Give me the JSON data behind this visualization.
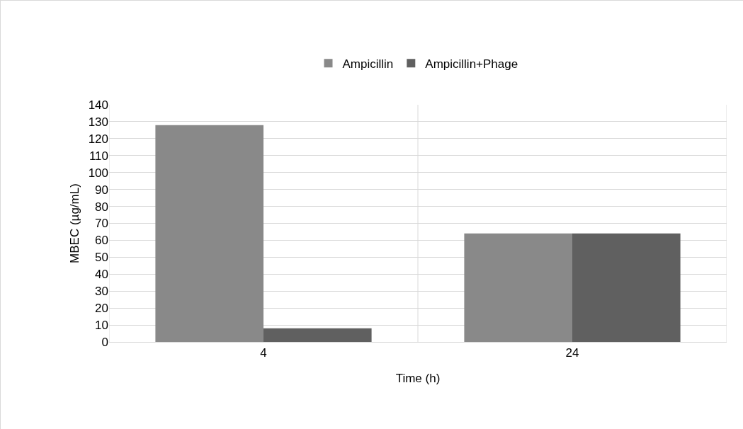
{
  "chart_data": {
    "type": "bar",
    "xlabel": "Time (h)",
    "ylabel": "MBEC (µg/mL)",
    "categories": [
      "4",
      "24"
    ],
    "series": [
      {
        "name": "Ampicillin",
        "color": "#898989",
        "values": [
          128,
          64
        ]
      },
      {
        "name": "Ampicillin+Phage",
        "color": "#606060",
        "values": [
          8,
          64
        ]
      }
    ],
    "ylim": [
      0,
      140
    ],
    "yticks": [
      0,
      10,
      20,
      30,
      40,
      50,
      60,
      70,
      80,
      90,
      100,
      110,
      120,
      130,
      140
    ],
    "grid": true,
    "legend": "top"
  }
}
